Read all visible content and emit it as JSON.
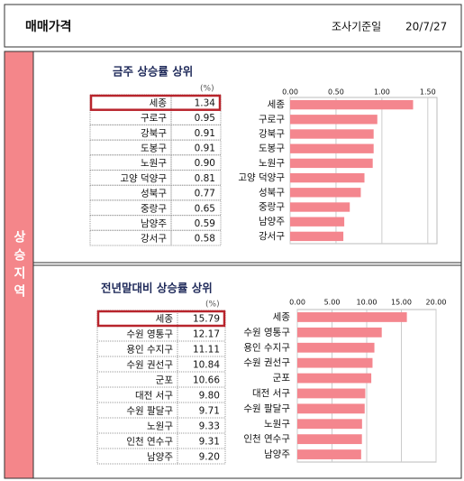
{
  "header": {
    "title": "매매가격",
    "date_label": "조사기준일",
    "date": "20/7/27"
  },
  "side_label": "상승지역",
  "chart_data": [
    {
      "type": "bar",
      "orientation": "horizontal",
      "title": "금주 상승률 상위",
      "unit": "(%)",
      "categories": [
        "세종",
        "구로구",
        "강북구",
        "도봉구",
        "노원구",
        "고양 덕양구",
        "성북구",
        "중랑구",
        "남양주",
        "강서구"
      ],
      "values": [
        1.34,
        0.95,
        0.91,
        0.91,
        0.9,
        0.81,
        0.77,
        0.65,
        0.59,
        0.58
      ],
      "value_labels": [
        "1.34",
        "0.95",
        "0.91",
        "0.91",
        "0.90",
        "0.81",
        "0.77",
        "0.65",
        "0.59",
        "0.58"
      ],
      "color": "#f4868e",
      "xlim": [
        0,
        1.6
      ],
      "xticks": [
        {
          "value": 0,
          "label": "0.00"
        },
        {
          "value": 0.5,
          "label": "0.50"
        },
        {
          "value": 1,
          "label": "1.00"
        },
        {
          "value": 1.5,
          "label": "1.50"
        }
      ],
      "grid": true
    },
    {
      "type": "bar",
      "orientation": "horizontal",
      "title": "전년말대비 상승률 상위",
      "unit": "(%)",
      "categories": [
        "세종",
        "수원 영통구",
        "용인 수지구",
        "수원 권선구",
        "군포",
        "대전 서구",
        "수원 팔달구",
        "노원구",
        "인천 연수구",
        "남양주"
      ],
      "values": [
        15.79,
        12.17,
        11.11,
        10.84,
        10.66,
        9.8,
        9.71,
        9.33,
        9.31,
        9.2
      ],
      "value_labels": [
        "15.79",
        "12.17",
        "11.11",
        "10.84",
        "10.66",
        "9.80",
        "9.71",
        "9.33",
        "9.31",
        "9.20"
      ],
      "color": "#f4868e",
      "xlim": [
        0,
        20
      ],
      "xticks": [
        {
          "value": 0,
          "label": "0.00"
        },
        {
          "value": 5,
          "label": "5.00"
        },
        {
          "value": 10,
          "label": "10.00"
        },
        {
          "value": 15,
          "label": "15.00"
        },
        {
          "value": 20,
          "label": "20.00"
        }
      ],
      "grid": true
    }
  ]
}
